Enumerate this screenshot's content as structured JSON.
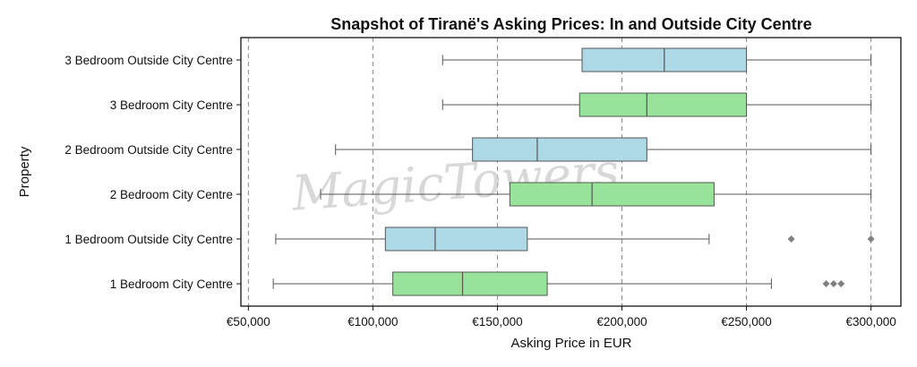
{
  "chart_data": {
    "type": "box",
    "orientation": "horizontal",
    "title": "Snapshot of Tiranë's Asking Prices: In and Outside City Centre",
    "xlabel": "Asking Price in EUR",
    "ylabel": "Property",
    "xlim": [
      47000,
      312000
    ],
    "xticks": [
      50000,
      100000,
      150000,
      200000,
      250000,
      300000
    ],
    "xtick_labels": [
      "€50,000",
      "€100,000",
      "€150,000",
      "€200,000",
      "€250,000",
      "€300,000"
    ],
    "grid": "vertical dashed",
    "colors": {
      "city_centre": "#98e39a",
      "outside_city_centre": "#add8e6",
      "outlier": "#808080",
      "line": "#555555"
    },
    "categories": [
      "3 Bedroom Outside City Centre",
      "3 Bedroom City Centre",
      "2 Bedroom Outside City Centre",
      "2 Bedroom City Centre",
      "1 Bedroom Outside City Centre",
      "1 Bedroom City Centre"
    ],
    "boxes": [
      {
        "label": "3 Bedroom Outside City Centre",
        "whisker_low": 128000,
        "q1": 184000,
        "median": 217000,
        "q3": 250000,
        "whisker_high": 300000,
        "outliers": [],
        "group": "outside_city_centre"
      },
      {
        "label": "3 Bedroom City Centre",
        "whisker_low": 128000,
        "q1": 183000,
        "median": 210000,
        "q3": 250000,
        "whisker_high": 300000,
        "outliers": [],
        "group": "city_centre"
      },
      {
        "label": "2 Bedroom Outside City Centre",
        "whisker_low": 85000,
        "q1": 140000,
        "median": 166000,
        "q3": 210000,
        "whisker_high": 300000,
        "outliers": [],
        "group": "outside_city_centre"
      },
      {
        "label": "2 Bedroom City Centre",
        "whisker_low": 79000,
        "q1": 155000,
        "median": 188000,
        "q3": 237000,
        "whisker_high": 300000,
        "outliers": [],
        "group": "city_centre"
      },
      {
        "label": "1 Bedroom Outside City Centre",
        "whisker_low": 61000,
        "q1": 105000,
        "median": 125000,
        "q3": 162000,
        "whisker_high": 235000,
        "outliers": [
          268000,
          300000
        ],
        "group": "outside_city_centre"
      },
      {
        "label": "1 Bedroom City Centre",
        "whisker_low": 60000,
        "q1": 108000,
        "median": 136000,
        "q3": 170000,
        "whisker_high": 260000,
        "outliers": [
          282000,
          285000,
          288000
        ],
        "group": "city_centre"
      }
    ],
    "watermark": "MagicTowers"
  }
}
